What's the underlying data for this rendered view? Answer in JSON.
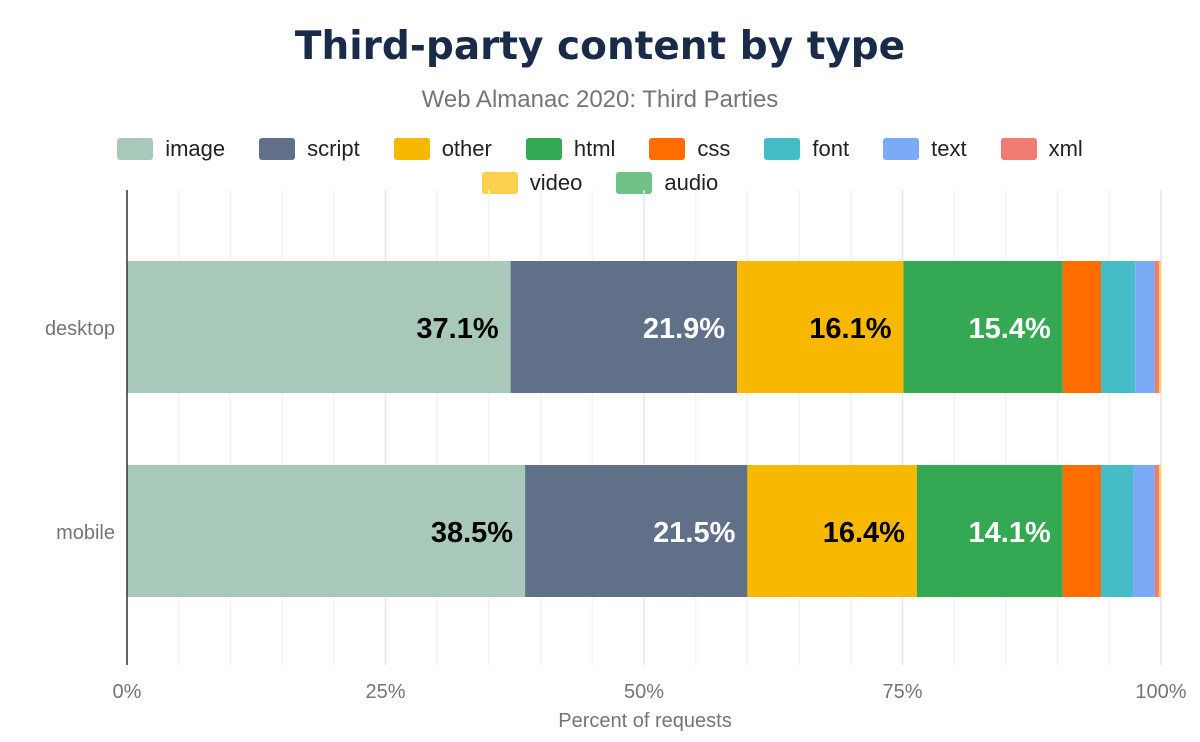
{
  "chart_data": {
    "type": "bar",
    "orientation": "horizontal",
    "stacked": true,
    "title": "Third-party content by type",
    "subtitle": "Web Almanac 2020: Third Parties",
    "xlabel": "Percent of requests",
    "ylabel": "",
    "xlim": [
      0,
      100
    ],
    "xticks": [
      "0%",
      "25%",
      "50%",
      "75%",
      "100%"
    ],
    "grid": true,
    "legend_position": "top",
    "categories": [
      "desktop",
      "mobile"
    ],
    "series": [
      {
        "name": "image",
        "color": "#a8c8b9",
        "values": [
          37.1,
          38.5
        ]
      },
      {
        "name": "script",
        "color": "#607089",
        "values": [
          21.9,
          21.5
        ]
      },
      {
        "name": "other",
        "color": "#f8b800",
        "values": [
          16.1,
          16.4
        ]
      },
      {
        "name": "html",
        "color": "#34a853",
        "values": [
          15.4,
          14.1
        ]
      },
      {
        "name": "css",
        "color": "#ff6d01",
        "values": [
          3.7,
          3.7
        ]
      },
      {
        "name": "font",
        "color": "#46bdc6",
        "values": [
          3.3,
          3.1
        ]
      },
      {
        "name": "text",
        "color": "#7baaf7",
        "values": [
          1.9,
          2.1
        ]
      },
      {
        "name": "xml",
        "color": "#f07b72",
        "values": [
          0.4,
          0.4
        ]
      },
      {
        "name": "video",
        "color": "#fcd04f",
        "values": [
          0.2,
          0.2
        ]
      },
      {
        "name": "audio",
        "color": "#71c287",
        "values": [
          0.0,
          0.0
        ]
      }
    ],
    "data_labels": [
      [
        "37.1%",
        "21.9%",
        "16.1%",
        "15.4%"
      ],
      [
        "38.5%",
        "21.5%",
        "16.4%",
        "14.1%"
      ]
    ]
  }
}
